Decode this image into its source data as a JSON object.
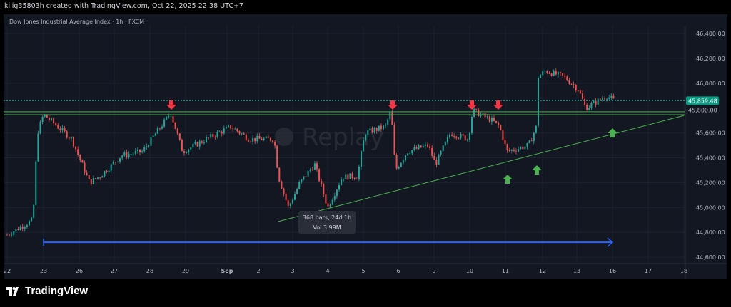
{
  "header": {
    "attribution": "kijig35803h created with TradingView.com, Oct 22, 2025 22:38 UTC+7"
  },
  "symbol_title": "Dow Jones Industrial Average Index · 1h · FXCM",
  "watermark": "Replay",
  "brand": "TradingView",
  "colors": {
    "up": "#26a69a",
    "down": "#ef5350",
    "background": "#131722",
    "line": "#4caf50",
    "arrow": "#2962ff",
    "last_price": "#089981"
  },
  "measure_tooltip": {
    "bars": "368 bars, 24d 1h",
    "volume": "Vol 3.99M"
  },
  "chart_data": {
    "type": "candlestick",
    "title": "Dow Jones Industrial Average Index · 1h · FXCM",
    "x_ticks": [
      "22",
      "23",
      "26",
      "27",
      "28",
      "29",
      "Sep",
      "2",
      "3",
      "4",
      "5",
      "6",
      "9",
      "10",
      "11",
      "12",
      "13",
      "16",
      "17",
      "18"
    ],
    "y_ticks": [
      "46,400.00",
      "46,200.00",
      "46,000.00",
      "45,800.00",
      "45,600.00",
      "45,400.00",
      "45,200.00",
      "45,000.00",
      "44,800.00",
      "44,600.00"
    ],
    "ylim": [
      44600,
      46400
    ],
    "last_price": "45,859.48",
    "level_label": "45,800.00",
    "path": [
      [
        "22",
        0,
        44780
      ],
      [
        "22",
        17,
        44900
      ],
      [
        "22",
        20,
        45600
      ],
      [
        "23",
        0,
        45750
      ],
      [
        "23",
        19,
        45550
      ],
      [
        "26",
        7,
        45200
      ],
      [
        "26",
        14,
        45250
      ],
      [
        "27",
        5,
        45420
      ],
      [
        "27",
        19,
        45450
      ],
      [
        "28",
        14,
        45760
      ],
      [
        "28",
        22,
        45450
      ],
      [
        "29",
        19,
        45600
      ],
      [
        "Sep",
        3,
        45650
      ],
      [
        "Sep",
        17,
        45550
      ],
      [
        "2",
        11,
        45550
      ],
      [
        "2",
        14,
        45250
      ],
      [
        "2",
        21,
        45000
      ],
      [
        "3",
        5,
        45200
      ],
      [
        "3",
        15,
        45350
      ],
      [
        "4",
        0,
        45000
      ],
      [
        "4",
        10,
        45250
      ],
      [
        "4",
        20,
        45250
      ],
      [
        "5",
        1,
        45600
      ],
      [
        "5",
        15,
        45650
      ],
      [
        "5",
        19,
        45780
      ],
      [
        "5",
        22,
        45300
      ],
      [
        "6",
        6,
        45450
      ],
      [
        "6",
        20,
        45500
      ],
      [
        "9",
        1,
        45350
      ],
      [
        "9",
        11,
        45600
      ],
      [
        "9",
        23,
        45550
      ],
      [
        "10",
        2,
        45780
      ],
      [
        "10",
        15,
        45700
      ],
      [
        "10",
        20,
        45650
      ],
      [
        "11",
        1,
        45450
      ],
      [
        "11",
        15,
        45500
      ],
      [
        "11",
        20,
        45650
      ],
      [
        "11",
        21,
        46050
      ],
      [
        "12",
        2,
        46100
      ],
      [
        "12",
        15,
        46050
      ],
      [
        "13",
        1,
        45950
      ],
      [
        "13",
        6,
        45800
      ],
      [
        "13",
        20,
        45900
      ],
      [
        "16",
        1,
        45860
      ]
    ],
    "horizontal_levels": [
      45770,
      45747
    ],
    "trendline": [
      [
        "3",
        -10,
        44887
      ],
      [
        "18",
        0,
        45740
      ]
    ],
    "range_arrow": [
      [
        "23",
        0,
        44720
      ],
      [
        "16",
        0,
        44720
      ]
    ],
    "down_arrows": [
      [
        "28",
        14
      ],
      [
        "5",
        19
      ],
      [
        "10",
        2
      ],
      [
        "10",
        20
      ]
    ],
    "up_arrows": [
      [
        "16",
        0
      ],
      [
        "11",
        2
      ],
      [
        "11",
        21
      ]
    ]
  }
}
